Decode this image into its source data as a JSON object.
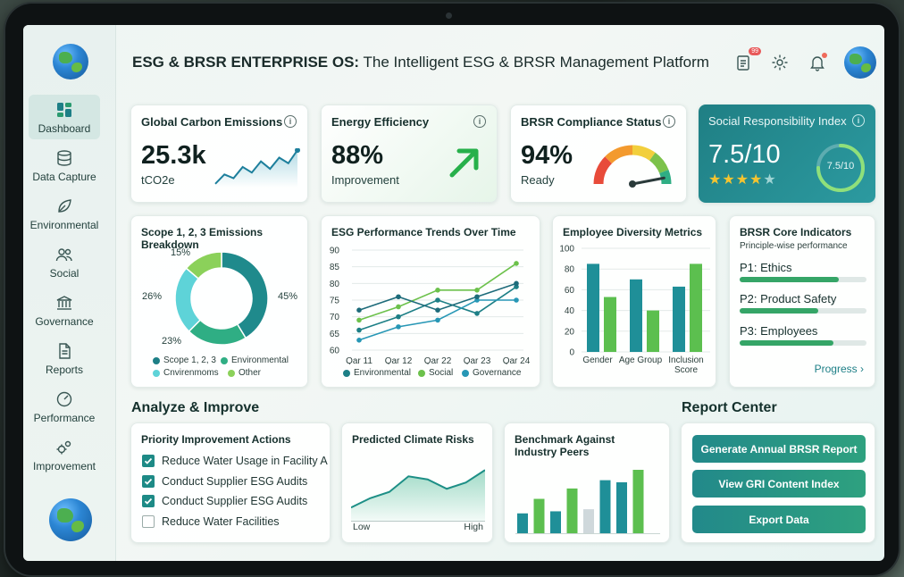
{
  "header": {
    "title_bold": "ESG & BRSR ENTERPRISE OS:",
    "title_rest": " The Intelligent ESG & BRSR Management Platform",
    "notification_count": "99"
  },
  "sidebar": {
    "items": [
      {
        "label": "Dashboard",
        "icon": "grid-icon"
      },
      {
        "label": "Data Capture",
        "icon": "database-icon"
      },
      {
        "label": "Environmental",
        "icon": "leaf-icon"
      },
      {
        "label": "Social",
        "icon": "people-icon"
      },
      {
        "label": "Governance",
        "icon": "bank-icon"
      },
      {
        "label": "Reports",
        "icon": "document-icon"
      },
      {
        "label": "Performance",
        "icon": "gauge-icon"
      },
      {
        "label": "Improvement",
        "icon": "gears-icon"
      }
    ]
  },
  "kpis": {
    "carbon": {
      "title": "Global Carbon Emissions",
      "value": "25.3k",
      "unit": "tCO2e"
    },
    "energy": {
      "title": "Energy Efficiency",
      "value": "88%",
      "sub": "Improvement"
    },
    "brsr": {
      "title": "BRSR Compliance Status",
      "value": "94%",
      "sub": "Ready",
      "gauge_level": 0.94
    },
    "social": {
      "title": "Social Responsibility Index",
      "value": "7.5/10",
      "ring": "7.5/10",
      "stars": 4,
      "ring_level": 0.75
    }
  },
  "emissions": {
    "title": "Scope 1, 2, 3 Emissions Breakdown",
    "labels": {
      "p15": "15%",
      "p26": "26%",
      "p23": "23%",
      "p45": "45%"
    },
    "legend": [
      "Scope 1, 2, 3",
      "Environmental",
      "Cnvirenmoms",
      "Other"
    ]
  },
  "trends": {
    "title": "ESG Performance Trends Over Time",
    "legend": [
      "Environmental",
      "Social",
      "Governance"
    ]
  },
  "diversity": {
    "title": "Employee Diversity Metrics",
    "group1": "Gender",
    "group2": "Age Group",
    "group3_line1": "Inclusion",
    "group3_line2": "Score"
  },
  "brsr_core": {
    "title": "BRSR Core Indicators",
    "subtitle": "Principle-wise performance",
    "items": [
      {
        "label": "P1: Ethics",
        "value": 0.78
      },
      {
        "label": "P2: Product Safety",
        "value": 0.62
      },
      {
        "label": "P3: Employees",
        "value": 0.74
      }
    ],
    "link": "Progress"
  },
  "sections": {
    "analyze": "Analyze & Improve",
    "report_center": "Report Center"
  },
  "priority": {
    "title": "Priority Improvement Actions",
    "items": [
      {
        "label": "Reduce Water Usage in Facility A",
        "checked": true
      },
      {
        "label": "Conduct Supplier ESG Audits",
        "checked": true
      },
      {
        "label": "Conduct Supplier ESG Audits",
        "checked": true
      },
      {
        "label": "Reduce Water Facilities",
        "checked": false
      }
    ]
  },
  "climate": {
    "title": "Predicted Climate Risks",
    "low": "Low",
    "high": "High"
  },
  "benchmark": {
    "title_line1": "Benchmark Against",
    "title_line2": "Industry Peers"
  },
  "reports": {
    "buttons": [
      "Generate Annual BRSR Report",
      "View GRI Content Index",
      "Export Data"
    ]
  },
  "chart_data": [
    {
      "type": "pie",
      "title": "Scope 1, 2, 3 Emissions Breakdown",
      "slices": [
        {
          "label": "45%",
          "value": 45,
          "color": "#1f8a8c"
        },
        {
          "label": "23%",
          "value": 23,
          "color": "#2fae84"
        },
        {
          "label": "26%",
          "value": 26,
          "color": "#5ed3d8"
        },
        {
          "label": "15%",
          "value": 15,
          "color": "#8bd15a"
        }
      ],
      "legend": [
        "Scope 1, 2, 3",
        "Environmental",
        "Cnvirenmoms",
        "Other"
      ],
      "legend_position": "bottom"
    },
    {
      "type": "line",
      "title": "ESG Performance Trends Over Time",
      "categories": [
        "Qar 11",
        "Qar 12",
        "Qar 22",
        "Qar 23",
        "Qar 24"
      ],
      "ylim": [
        60,
        90
      ],
      "yticks": [
        60,
        65,
        70,
        75,
        80,
        85,
        90
      ],
      "series": [
        {
          "name": "Environmental",
          "values": [
            66,
            70,
            75,
            71,
            79
          ],
          "color": "#1d7f86",
          "dashed": false
        },
        {
          "name": "Social",
          "values": [
            69,
            73,
            78,
            78,
            86
          ],
          "color": "#6cc14b",
          "dashed": false
        },
        {
          "name": "Governance",
          "values": [
            63,
            67,
            69,
            75,
            75
          ],
          "color": "#2797b5",
          "dashed": false
        },
        {
          "name": "",
          "values": [
            72,
            76,
            72,
            76,
            80
          ],
          "color": "#1d6b7a",
          "dashed": false
        }
      ],
      "grid": true,
      "legend_position": "bottom"
    },
    {
      "type": "bar",
      "title": "Employee Diversity Metrics",
      "categories": [
        "Gender",
        "Age Group",
        "Inclusion Score"
      ],
      "ylim": [
        0,
        100
      ],
      "yticks": [
        0,
        20,
        40,
        60,
        80,
        100
      ],
      "series": [
        {
          "values": [
            85,
            70,
            63
          ],
          "color": "#1f8f98"
        },
        {
          "values": [
            53,
            40,
            85
          ],
          "color": "#5cbf4f"
        }
      ],
      "grid": true
    },
    {
      "type": "area",
      "title": "Predicted Climate Risks",
      "x_labels": [
        "Low",
        "High"
      ],
      "values": [
        18,
        30,
        38,
        58,
        54,
        42,
        50,
        66
      ]
    },
    {
      "type": "bar",
      "title": "Benchmark Against Industry Peers",
      "values": [
        20,
        34,
        22,
        44,
        24,
        52,
        50,
        62
      ],
      "colors": [
        "#1f8f98",
        "#5cbf4f",
        "#1f8f98",
        "#5cbf4f",
        "#cfd8db",
        "#1f8f98",
        "#1f8f98",
        "#5cbf4f"
      ]
    },
    {
      "type": "line",
      "title": "Global Carbon Emissions",
      "values": [
        30,
        40,
        36,
        48,
        42,
        54,
        46,
        58,
        52,
        66
      ]
    }
  ]
}
